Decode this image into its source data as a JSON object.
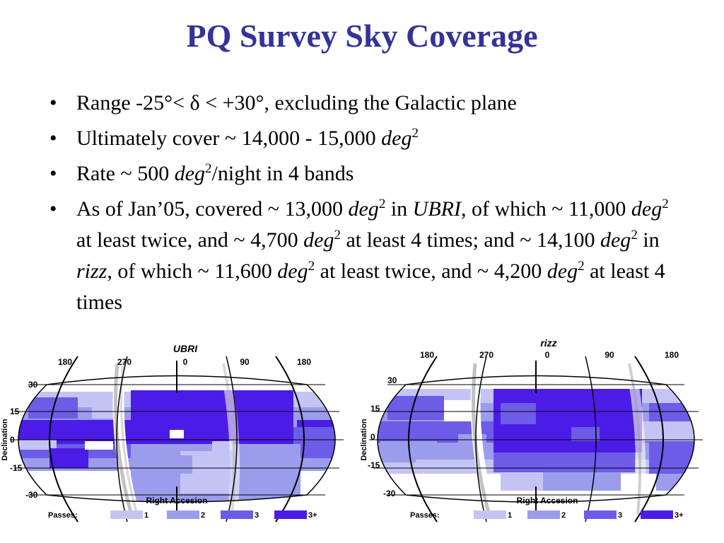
{
  "title": "PQ Survey Sky Coverage",
  "bullets": {
    "b1": {
      "pre": "Range -25°< ",
      "delta": "δ",
      "post": " < +30°, excluding the Galactic plane"
    },
    "b2": {
      "pre": "Ultimately cover ~ 14,000 - 15,000 ",
      "unit": "deg",
      "exp": "2"
    },
    "b3": {
      "pre": "Rate ~ 500 ",
      "unit": "deg",
      "exp": "2",
      "post": "/night in 4 bands"
    },
    "b4": {
      "t1": "As of Jan’05, covered ~ 13,000 ",
      "u1": "deg",
      "e1": "2",
      "t2": " in ",
      "band1": "UBRI",
      "t3": ", of which ~ 11,000 ",
      "u2": "deg",
      "e2": "2",
      "t4": " at least twice, and ~ 4,700 ",
      "u3": "deg",
      "e3": "2",
      "t5": " at least 4 times; and ~ 14,100 ",
      "u4": "deg",
      "e4": "2",
      "t6": " in ",
      "band2": "rizz",
      "t7": ", of which ~ 11,600 ",
      "u5": "deg",
      "e5": "2",
      "t8": " at least twice, and ~ 4,200 ",
      "u6": "deg",
      "e6": "2",
      "t9": " at least 4 times"
    }
  },
  "maps": [
    {
      "title": "UBRI",
      "ra_ticks": [
        "180",
        "270",
        "0",
        "90",
        "180"
      ],
      "dec_ticks": [
        "30",
        "15",
        "0",
        "-15",
        "-30"
      ],
      "ylabel": "Declination",
      "xlabel": "Right Accesion",
      "legend_label": "Passes:",
      "legend": [
        {
          "label": "1",
          "color": "#c4c4f4"
        },
        {
          "label": "2",
          "color": "#9c9cec"
        },
        {
          "label": "3",
          "color": "#6c5ce8"
        },
        {
          "label": "3+",
          "color": "#4b1ce6"
        }
      ]
    },
    {
      "title": "rizz",
      "ra_ticks": [
        "180",
        "270",
        "0",
        "90",
        "180"
      ],
      "dec_ticks": [
        "30",
        "15",
        "0",
        "-15",
        "-30"
      ],
      "ylabel": "Declination",
      "xlabel": "Right Accesion",
      "legend_label": "Passes:",
      "legend": [
        {
          "label": "1",
          "color": "#c4c4f4"
        },
        {
          "label": "2",
          "color": "#9c9cec"
        },
        {
          "label": "3",
          "color": "#6c5ce8"
        },
        {
          "label": "3+",
          "color": "#4b1ce6"
        }
      ]
    }
  ]
}
